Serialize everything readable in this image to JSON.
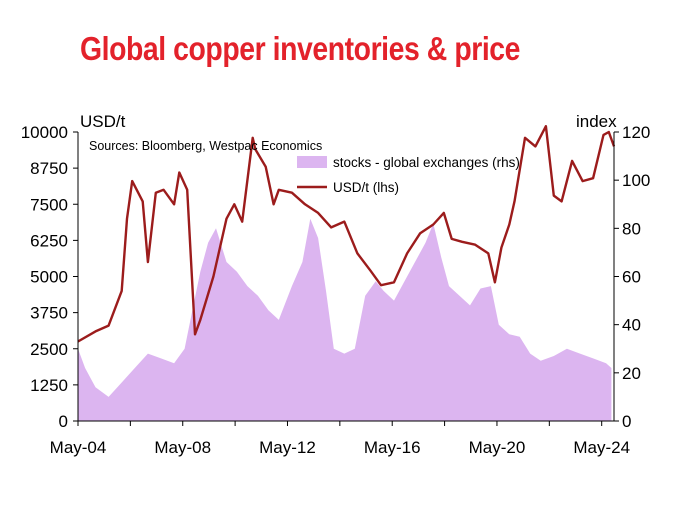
{
  "page_title": "Global copper inventories & price",
  "chart_data": {
    "type": "line",
    "title": "Global copper inventories & price",
    "source": "Sources: Bloomberg, Westpac Economics",
    "left_axis": {
      "label": "USD/t",
      "range": [
        0,
        10000
      ],
      "ticks": [
        "0",
        "1250",
        "2500",
        "3750",
        "5000",
        "6250",
        "7500",
        "8750",
        "10000"
      ]
    },
    "right_axis": {
      "label": "index",
      "range": [
        0,
        120
      ],
      "ticks": [
        "0",
        "20",
        "40",
        "60",
        "80",
        "100",
        "120"
      ]
    },
    "x_ticks": [
      "May-04",
      "May-08",
      "May-12",
      "May-16",
      "May-20",
      "May-24"
    ],
    "x_range": [
      2004.33,
      2024.8
    ],
    "legend_position": "top-center",
    "series": [
      {
        "name": "stocks - global exchanges (rhs)",
        "type": "area",
        "axis": "right",
        "color": "#dcb5f0",
        "x": [
          2004.33,
          2004.6,
          2005.0,
          2005.5,
          2006.0,
          2006.5,
          2007.0,
          2007.5,
          2008.0,
          2008.4,
          2008.7,
          2009.0,
          2009.3,
          2009.6,
          2010.0,
          2010.4,
          2010.8,
          2011.2,
          2011.6,
          2012.0,
          2012.5,
          2012.9,
          2013.2,
          2013.5,
          2013.8,
          2014.1,
          2014.5,
          2014.9,
          2015.3,
          2015.7,
          2016.0,
          2016.4,
          2016.8,
          2017.2,
          2017.6,
          2017.9,
          2018.2,
          2018.5,
          2018.9,
          2019.3,
          2019.7,
          2020.1,
          2020.4,
          2020.8,
          2021.2,
          2021.6,
          2022.0,
          2022.5,
          2023.0,
          2023.5,
          2024.0,
          2024.5,
          2024.7
        ],
        "values": [
          30,
          22,
          14,
          10,
          16,
          22,
          28,
          26,
          24,
          30,
          46,
          62,
          74,
          80,
          66,
          62,
          56,
          52,
          46,
          42,
          56,
          66,
          84,
          76,
          54,
          30,
          28,
          30,
          52,
          58,
          54,
          50,
          58,
          66,
          74,
          82,
          68,
          56,
          52,
          48,
          55,
          56,
          40,
          36,
          35,
          28,
          25,
          27,
          30,
          28,
          26,
          24,
          22
        ]
      },
      {
        "name": "USD/t (lhs)",
        "type": "line",
        "axis": "left",
        "color": "#9c1c1c",
        "x": [
          2004.33,
          2005.0,
          2005.5,
          2006.0,
          2006.2,
          2006.4,
          2006.8,
          2007.0,
          2007.3,
          2007.6,
          2008.0,
          2008.2,
          2008.5,
          2008.8,
          2009.0,
          2009.5,
          2010.0,
          2010.3,
          2010.6,
          2011.0,
          2011.1,
          2011.5,
          2011.8,
          2012.0,
          2012.5,
          2013.0,
          2013.5,
          2014.0,
          2014.5,
          2015.0,
          2015.5,
          2015.9,
          2016.4,
          2016.9,
          2017.4,
          2017.9,
          2018.3,
          2018.6,
          2019.0,
          2019.5,
          2020.0,
          2020.25,
          2020.5,
          2020.8,
          2021.0,
          2021.4,
          2021.8,
          2022.2,
          2022.5,
          2022.8,
          2023.2,
          2023.6,
          2024.0,
          2024.4,
          2024.6,
          2024.8
        ],
        "values": [
          2750,
          3100,
          3300,
          4500,
          7000,
          8300,
          7600,
          5500,
          7900,
          8000,
          7500,
          8600,
          8000,
          3000,
          3500,
          5000,
          7000,
          7500,
          6900,
          9800,
          9400,
          8800,
          7500,
          8000,
          7900,
          7500,
          7200,
          6700,
          6900,
          5800,
          5200,
          4700,
          4800,
          5800,
          6500,
          6800,
          7200,
          6300,
          6200,
          6100,
          5800,
          4800,
          6000,
          6800,
          7600,
          9800,
          9500,
          10200,
          7800,
          7600,
          9000,
          8300,
          8400,
          9900,
          10000,
          9500
        ]
      }
    ]
  }
}
